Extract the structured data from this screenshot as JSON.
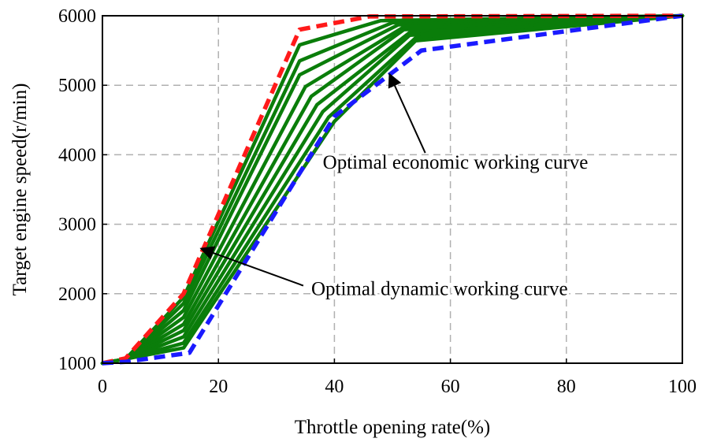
{
  "chart_data": {
    "type": "line",
    "title": "",
    "xlabel": "Throttle opening rate(%)",
    "ylabel": "Target engine speed(r/min)",
    "xlim": [
      0,
      100
    ],
    "ylim": [
      1000,
      6000
    ],
    "xticks": [
      0,
      20,
      40,
      60,
      80,
      100
    ],
    "yticks": [
      1000,
      2000,
      3000,
      4000,
      5000,
      6000
    ],
    "grid": true,
    "grid_style": "dashed",
    "colors": {
      "dynamic": "#ff1a1a",
      "economic": "#1a1aff",
      "intermediate": "#0a7d0a",
      "grid": "#b0b0b0"
    },
    "series": [
      {
        "name": "Optimal dynamic working curve",
        "style": "dashed",
        "x": [
          0,
          4,
          14,
          34,
          46,
          100
        ],
        "y": [
          1000,
          1070,
          2000,
          5800,
          5990,
          6000
        ]
      },
      {
        "name": "Optimal economic working curve",
        "style": "dashed",
        "x": [
          0,
          4,
          15,
          40,
          55,
          100
        ],
        "y": [
          1000,
          1020,
          1150,
          4550,
          5500,
          6000
        ]
      }
    ],
    "intermediate_curves": {
      "style": "solid",
      "start": {
        "x": [
          0,
          4
        ],
        "y": [
          1000,
          1060
        ]
      },
      "end": {
        "x": [
          100
        ],
        "y": [
          6000
        ]
      },
      "knees": [
        [
          [
            14,
            1950
          ],
          [
            34,
            5580
          ],
          [
            48,
            5930
          ]
        ],
        [
          [
            14,
            1860
          ],
          [
            34,
            5350
          ],
          [
            50,
            5900
          ]
        ],
        [
          [
            14,
            1760
          ],
          [
            34,
            5150
          ],
          [
            51,
            5870
          ]
        ],
        [
          [
            14,
            1660
          ],
          [
            35,
            4980
          ],
          [
            52,
            5840
          ]
        ],
        [
          [
            14,
            1560
          ],
          [
            36,
            4840
          ],
          [
            52,
            5800
          ]
        ],
        [
          [
            14,
            1470
          ],
          [
            37,
            4720
          ],
          [
            53,
            5760
          ]
        ],
        [
          [
            14,
            1380
          ],
          [
            38,
            4620
          ],
          [
            53,
            5720
          ]
        ],
        [
          [
            14,
            1290
          ],
          [
            39,
            4540
          ],
          [
            54,
            5680
          ]
        ],
        [
          [
            14,
            1220
          ],
          [
            40,
            4480
          ],
          [
            54,
            5640
          ]
        ]
      ]
    },
    "annotations": [
      {
        "text": "Optimal economic working curve",
        "text_at": [
          38,
          3800
        ],
        "arrow_to": [
          49.5,
          5160
        ]
      },
      {
        "text": "Optimal dynamic working curve",
        "text_at": [
          36,
          1980
        ],
        "arrow_to": [
          17,
          2650
        ]
      }
    ]
  }
}
